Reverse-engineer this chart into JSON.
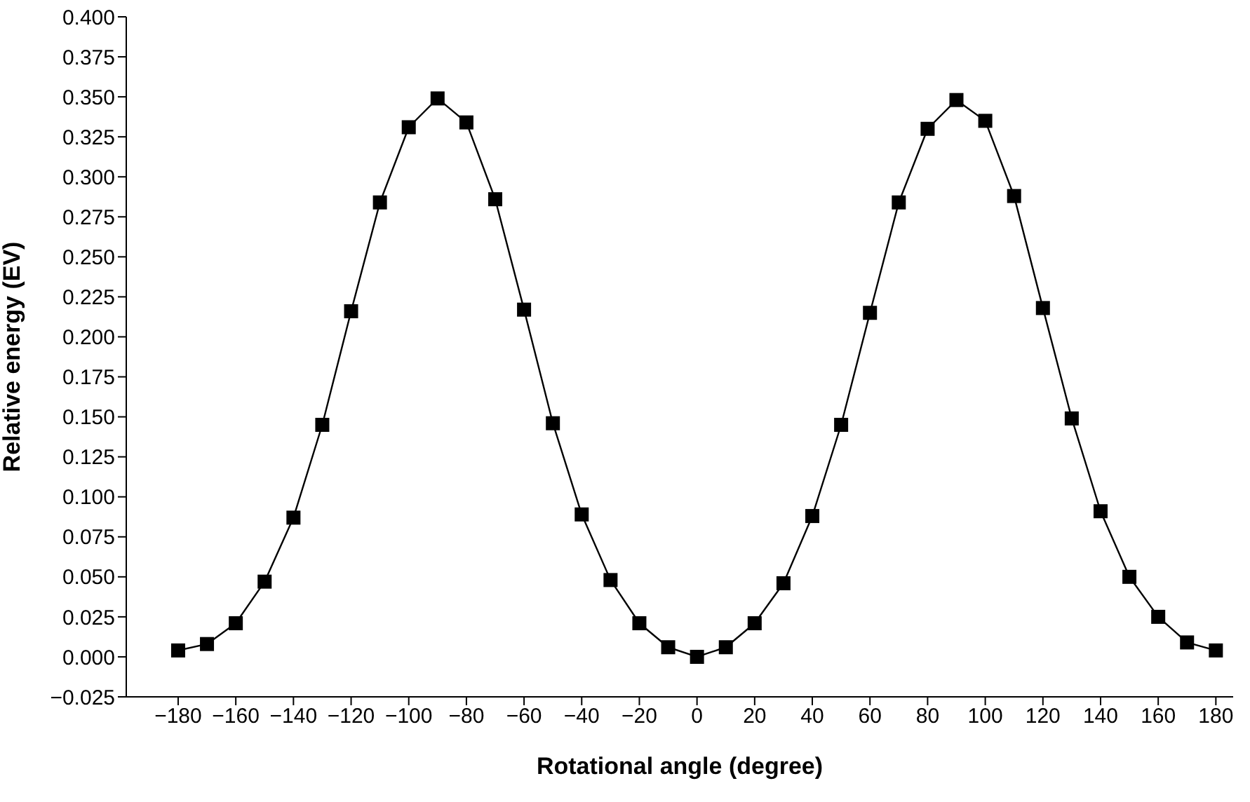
{
  "chart_data": {
    "type": "line",
    "xlabel": "Rotational angle (degree)",
    "ylabel": "Relative energy (EV)",
    "x": [
      -180,
      -170,
      -160,
      -150,
      -140,
      -130,
      -120,
      -110,
      -100,
      -90,
      -80,
      -70,
      -60,
      -50,
      -40,
      -30,
      -20,
      -10,
      0,
      10,
      20,
      30,
      40,
      50,
      60,
      70,
      80,
      90,
      100,
      110,
      120,
      130,
      140,
      150,
      160,
      170,
      180
    ],
    "series": [
      {
        "color": "#000000",
        "values": [
          0.004,
          0.008,
          0.021,
          0.047,
          0.087,
          0.145,
          0.216,
          0.284,
          0.331,
          0.349,
          0.334,
          0.286,
          0.217,
          0.146,
          0.089,
          0.048,
          0.021,
          0.006,
          0,
          0.006,
          0.021,
          0.046,
          0.088,
          0.145,
          0.215,
          0.284,
          0.33,
          0.348,
          0.335,
          0.288,
          0.218,
          0.149,
          0.091,
          0.05,
          0.025,
          0.009,
          0.004
        ]
      }
    ],
    "xlim": [
      -198,
      186
    ],
    "ylim": [
      -0.025,
      0.4
    ],
    "xticks": [
      {
        "value": -180,
        "label": "−180"
      },
      {
        "value": -160,
        "label": "−160"
      },
      {
        "value": -140,
        "label": "−140"
      },
      {
        "value": -120,
        "label": "−120"
      },
      {
        "value": -100,
        "label": "−100"
      },
      {
        "value": -80,
        "label": "−80"
      },
      {
        "value": -60,
        "label": "−60"
      },
      {
        "value": -40,
        "label": "−40"
      },
      {
        "value": -20,
        "label": "−20"
      },
      0,
      20,
      40,
      60,
      80,
      100,
      120,
      140,
      160,
      180
    ],
    "yticks": [
      {
        "value": -0.025,
        "label": "−0.025"
      },
      {
        "value": 0,
        "label": "0.000"
      },
      {
        "value": 0.025,
        "label": "0.025"
      },
      {
        "value": 0.05,
        "label": "0.050"
      },
      {
        "value": 0.075,
        "label": "0.075"
      },
      {
        "value": 0.1,
        "label": "0.100"
      },
      {
        "value": 0.125,
        "label": "0.125"
      },
      {
        "value": 0.15,
        "label": "0.150"
      },
      {
        "value": 0.175,
        "label": "0.175"
      },
      {
        "value": 0.2,
        "label": "0.200"
      },
      {
        "value": 0.225,
        "label": "0.225"
      },
      {
        "value": 0.25,
        "label": "0.250"
      },
      {
        "value": 0.275,
        "label": "0.275"
      },
      {
        "value": 0.3,
        "label": "0.300"
      },
      {
        "value": 0.325,
        "label": "0.325"
      },
      {
        "value": 0.35,
        "label": "0.350"
      },
      {
        "value": 0.375,
        "label": "0.375"
      },
      {
        "value": 0.4,
        "label": "0.400"
      }
    ],
    "marker": "square",
    "line_style": "solid"
  }
}
